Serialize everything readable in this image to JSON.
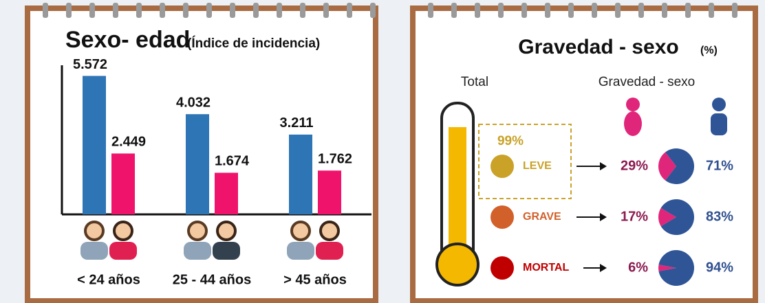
{
  "chart_data": [
    {
      "type": "bar",
      "title": "Sexo- edad",
      "subtitle": "(Índice de incidencia)",
      "categories": [
        "< 24 años",
        "25 - 44 años",
        "> 45 años"
      ],
      "series": [
        {
          "color": "#2e75b6",
          "values": [
            5572,
            4032,
            3211
          ],
          "value_labels": [
            "5.572",
            "4.032",
            "3.211"
          ]
        },
        {
          "color": "#f0136b",
          "values": [
            2449,
            1674,
            1762
          ],
          "value_labels": [
            "2.449",
            "1.674",
            "1.762"
          ]
        }
      ],
      "ylim": [
        0,
        6000
      ]
    },
    {
      "type": "pie",
      "title": "Gravedad - sexo",
      "title_unit": "(%)",
      "column_labels": [
        "Total",
        "Gravedad - sexo"
      ],
      "total": 99,
      "total_label": "99%",
      "categories": [
        "LEVE",
        "GRAVE",
        "MORTAL"
      ],
      "category_colors": [
        "#c9a227",
        "#d2602a",
        "#c00000"
      ],
      "series": [
        {
          "color": "#e0267a",
          "values": [
            29,
            17,
            6
          ],
          "value_labels": [
            "29%",
            "17%",
            "6%"
          ]
        },
        {
          "color": "#2f5597",
          "values": [
            71,
            83,
            94
          ],
          "value_labels": [
            "71%",
            "83%",
            "94%"
          ]
        }
      ]
    }
  ]
}
